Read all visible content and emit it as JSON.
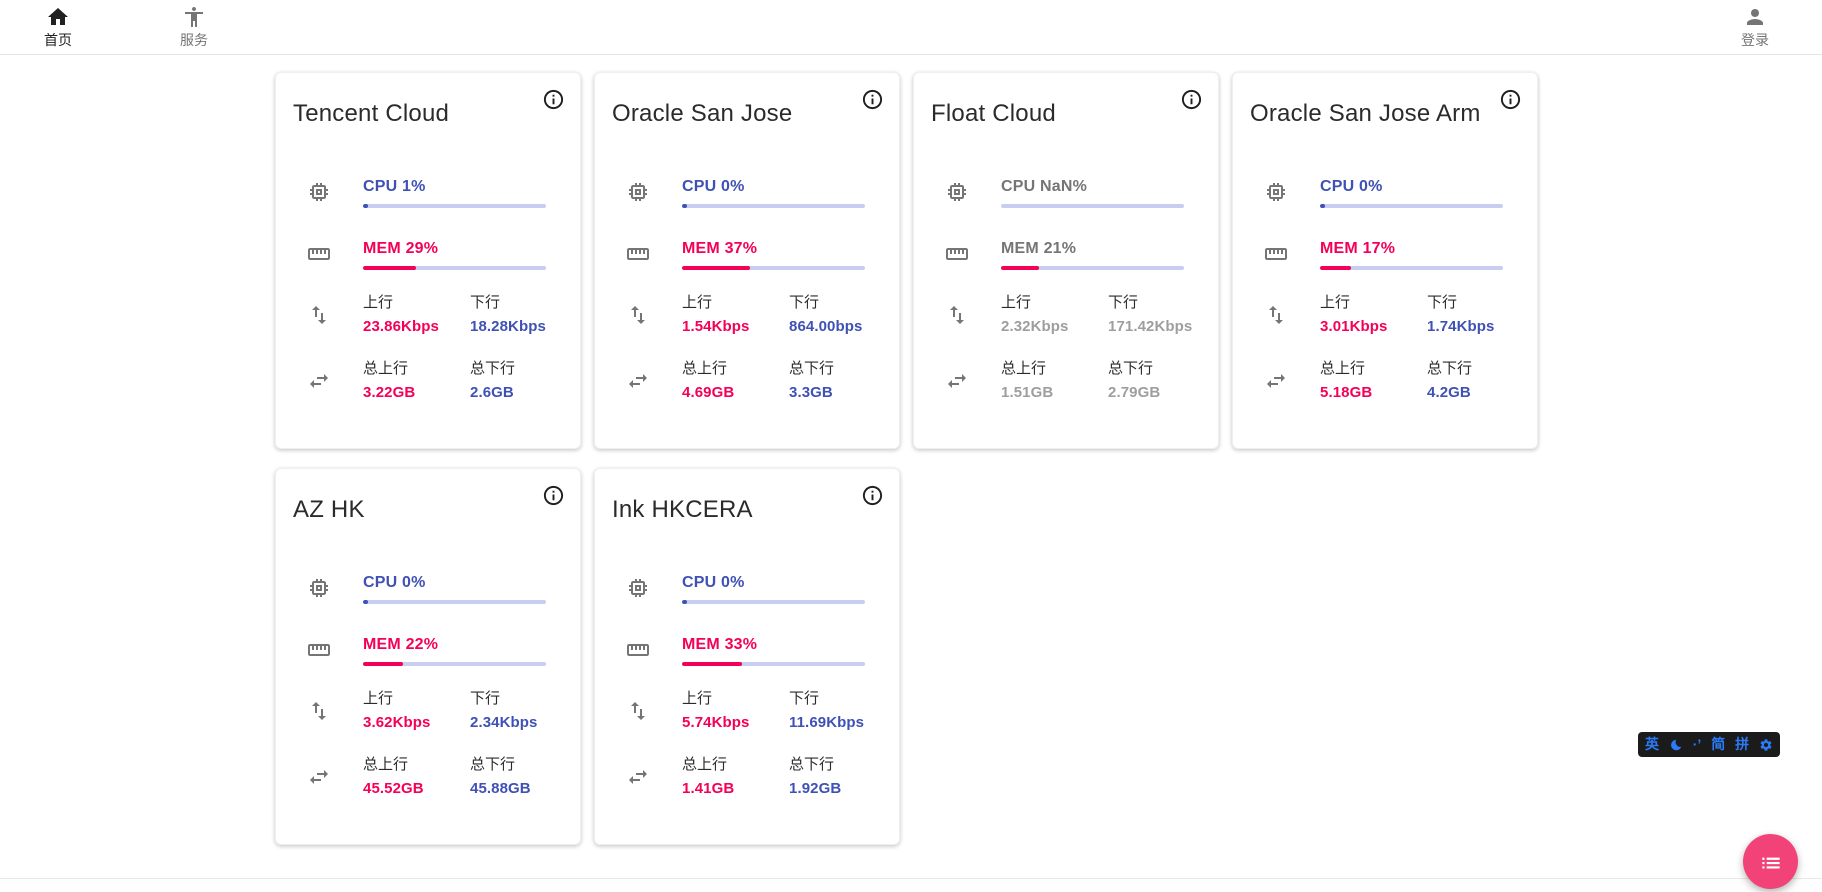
{
  "nav": {
    "home_label": "首页",
    "services_label": "服务",
    "login_label": "登录"
  },
  "colors": {
    "cpu_blue": "#3f51b5",
    "mem_pink": "#f50057",
    "bar_track": "#c9cdf0",
    "muted_value_gray": "#9e9e9e",
    "fab_pink": "#f24379",
    "ime_blue": "#2b7bf7"
  },
  "cards": [
    {
      "title": "Tencent Cloud",
      "muted": false,
      "cpu": {
        "label": "CPU 1%",
        "pct": 1
      },
      "mem": {
        "label": "MEM 29%",
        "pct": 29
      },
      "net": {
        "up_label": "上行",
        "up": "23.86Kbps",
        "down_label": "下行",
        "down": "18.28Kbps"
      },
      "total": {
        "up_label": "总上行",
        "up": "3.22GB",
        "down_label": "总下行",
        "down": "2.6GB"
      }
    },
    {
      "title": "Oracle San Jose",
      "muted": false,
      "cpu": {
        "label": "CPU 0%",
        "pct": 0
      },
      "mem": {
        "label": "MEM 37%",
        "pct": 37
      },
      "net": {
        "up_label": "上行",
        "up": "1.54Kbps",
        "down_label": "下行",
        "down": "864.00bps"
      },
      "total": {
        "up_label": "总上行",
        "up": "4.69GB",
        "down_label": "总下行",
        "down": "3.3GB"
      }
    },
    {
      "title": "Float Cloud",
      "muted": true,
      "cpu": {
        "label": "CPU NaN%",
        "pct": null
      },
      "mem": {
        "label": "MEM 21%",
        "pct": 21
      },
      "net": {
        "up_label": "上行",
        "up": "2.32Kbps",
        "down_label": "下行",
        "down": "171.42Kbps"
      },
      "total": {
        "up_label": "总上行",
        "up": "1.51GB",
        "down_label": "总下行",
        "down": "2.79GB"
      }
    },
    {
      "title": "Oracle San Jose Arm",
      "muted": false,
      "cpu": {
        "label": "CPU 0%",
        "pct": 0
      },
      "mem": {
        "label": "MEM 17%",
        "pct": 17
      },
      "net": {
        "up_label": "上行",
        "up": "3.01Kbps",
        "down_label": "下行",
        "down": "1.74Kbps"
      },
      "total": {
        "up_label": "总上行",
        "up": "5.18GB",
        "down_label": "总下行",
        "down": "4.2GB"
      }
    },
    {
      "title": "AZ HK",
      "muted": false,
      "cpu": {
        "label": "CPU 0%",
        "pct": 0
      },
      "mem": {
        "label": "MEM 22%",
        "pct": 22
      },
      "net": {
        "up_label": "上行",
        "up": "3.62Kbps",
        "down_label": "下行",
        "down": "2.34Kbps"
      },
      "total": {
        "up_label": "总上行",
        "up": "45.52GB",
        "down_label": "总下行",
        "down": "45.88GB"
      }
    },
    {
      "title": "Ink HKCERA",
      "muted": false,
      "cpu": {
        "label": "CPU 0%",
        "pct": 0
      },
      "mem": {
        "label": "MEM 33%",
        "pct": 33
      },
      "net": {
        "up_label": "上行",
        "up": "5.74Kbps",
        "down_label": "下行",
        "down": "11.69Kbps"
      },
      "total": {
        "up_label": "总上行",
        "up": "1.41GB",
        "down_label": "总下行",
        "down": "1.92GB"
      }
    }
  ],
  "ime_toolbar": {
    "lang": "英",
    "punct": "·’",
    "simplified": "简",
    "pinyin": "拼"
  }
}
